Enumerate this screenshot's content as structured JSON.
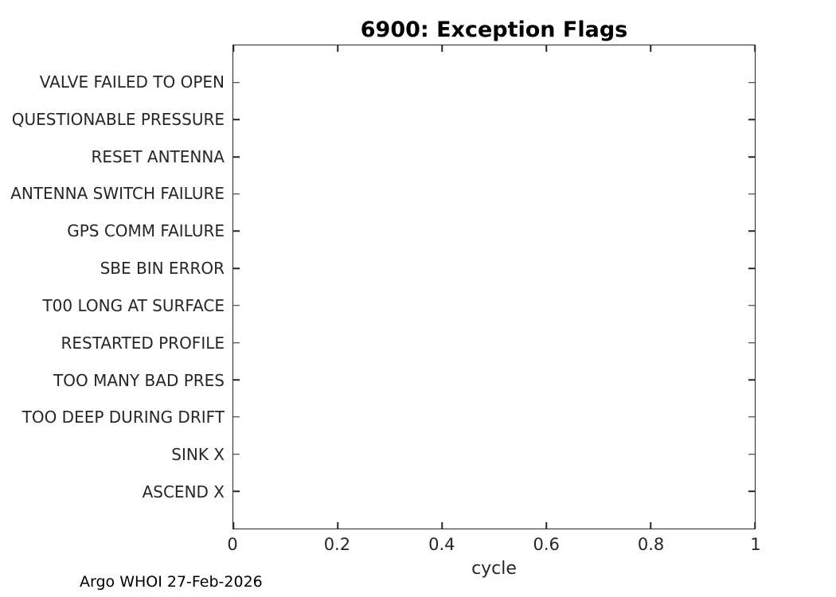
{
  "figure": {
    "title": "6900: Exception Flags",
    "footer": "Argo WHOI 27-Feb-2026"
  },
  "chart_data": {
    "type": "scatter",
    "title": "6900: Exception Flags",
    "xlabel": "cycle",
    "ylabel": "",
    "xlim": [
      0,
      1
    ],
    "x_ticks": [
      0,
      0.2,
      0.4,
      0.6,
      0.8,
      1
    ],
    "x_tick_labels": [
      "0",
      "0.2",
      "0.4",
      "0.6",
      "0.8",
      "1"
    ],
    "y_categories": [
      "VALVE FAILED TO OPEN",
      "QUESTIONABLE PRESSURE",
      "RESET ANTENNA",
      "ANTENNA SWITCH FAILURE",
      "GPS COMM FAILURE",
      "SBE BIN ERROR",
      "T00 LONG AT SURFACE",
      "RESTARTED PROFILE",
      "TOO MANY BAD PRES",
      "TOO DEEP DURING DRIFT",
      "SINK X",
      "ASCEND X"
    ],
    "series": [],
    "grid": false,
    "legend": null,
    "tick_direction": "in",
    "box": true,
    "colors": {
      "axis": "#262626",
      "tick_label": "#262626",
      "title": "#000000",
      "background": "#ffffff"
    }
  }
}
